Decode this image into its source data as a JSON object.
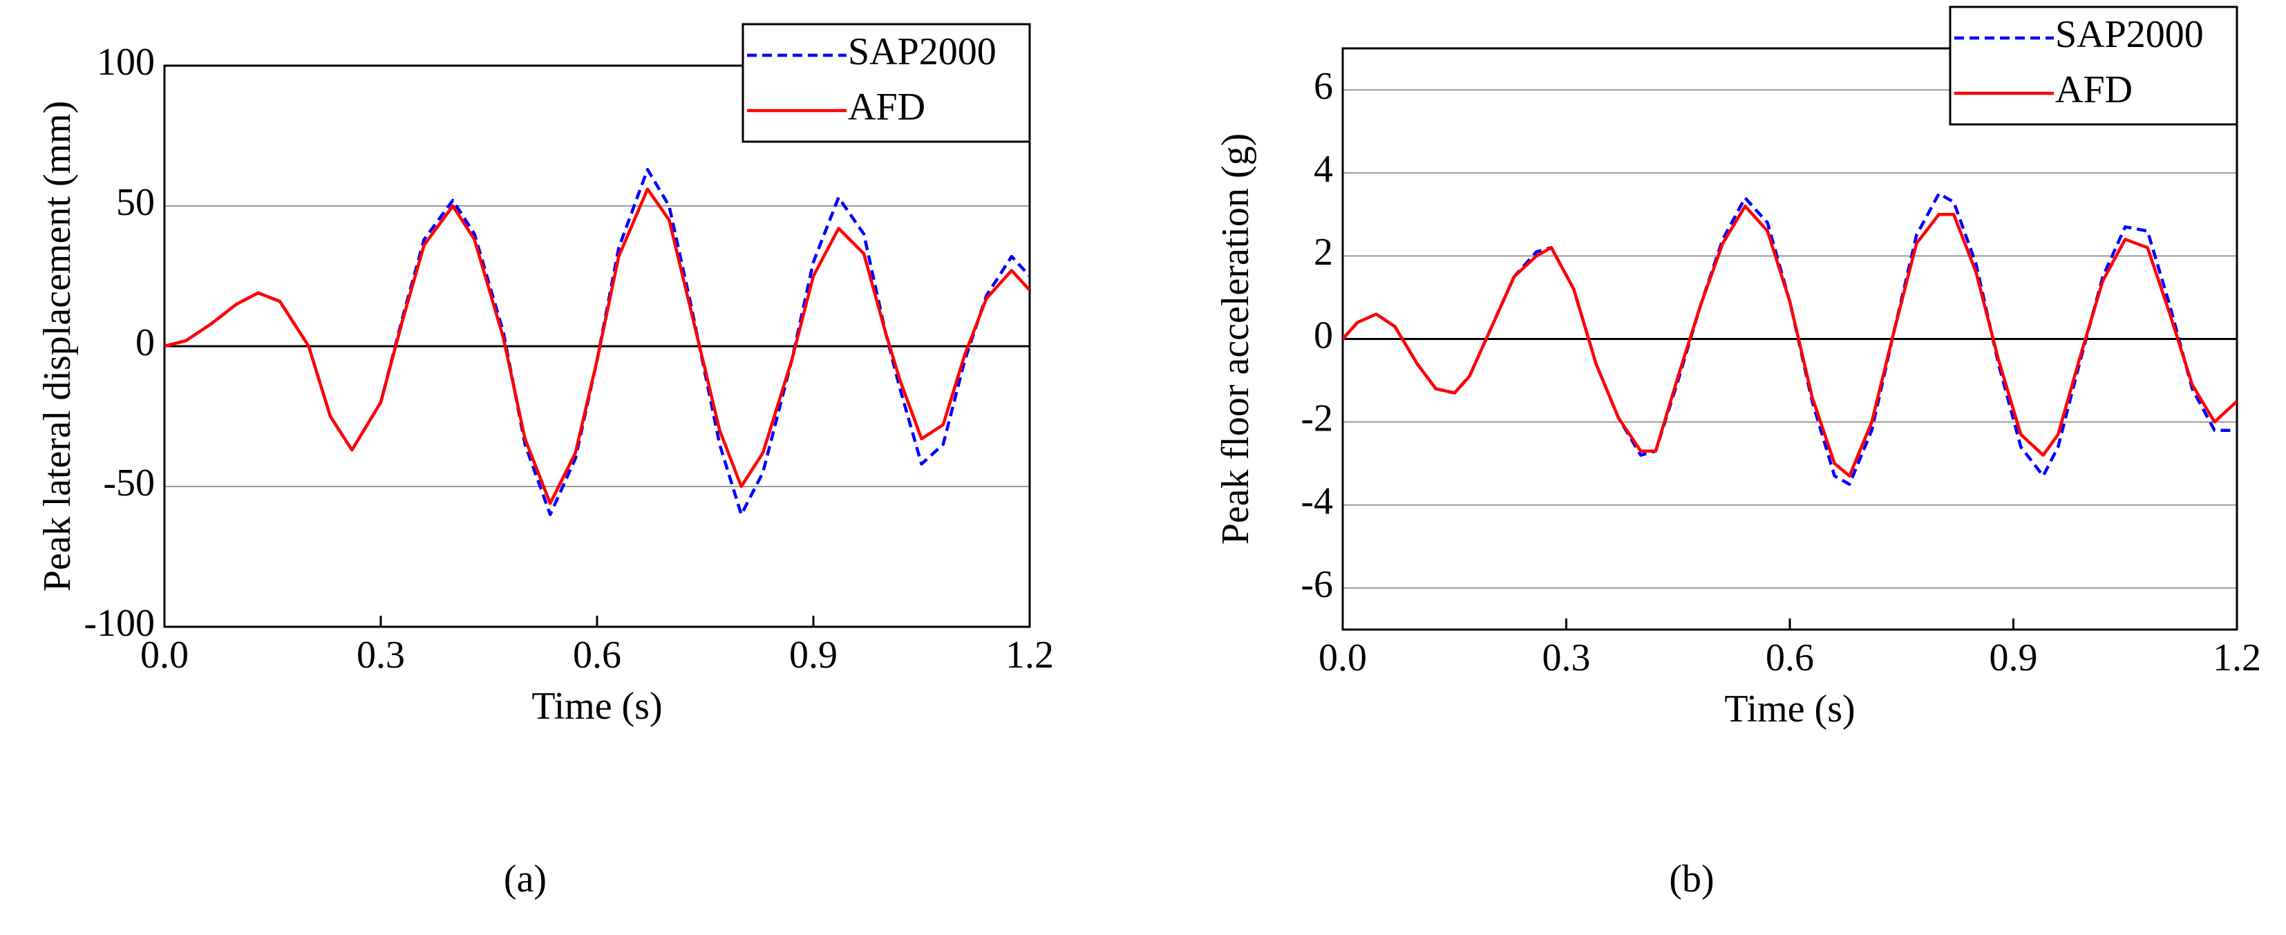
{
  "chart_data": [
    {
      "type": "line",
      "panel_label": "(a)",
      "xlabel": "Time (s)",
      "ylabel": "Peak lateral displacement (mm)",
      "x": [
        0,
        0.03,
        0.065,
        0.1,
        0.13,
        0.16,
        0.2,
        0.23,
        0.26,
        0.3,
        0.33,
        0.36,
        0.4,
        0.43,
        0.47,
        0.5,
        0.535,
        0.57,
        0.6,
        0.63,
        0.67,
        0.7,
        0.73,
        0.77,
        0.8,
        0.83,
        0.87,
        0.9,
        0.935,
        0.97,
        1.0,
        1.02,
        1.05,
        1.08,
        1.11,
        1.14,
        1.175,
        1.2
      ],
      "series": [
        {
          "name": "SAP2000",
          "color": "#0000ff",
          "style": "dashed",
          "values": [
            0,
            2,
            8,
            15,
            19,
            16,
            0,
            -25,
            -37,
            -20,
            10,
            38,
            52,
            40,
            5,
            -35,
            -60,
            -40,
            -5,
            35,
            63,
            50,
            15,
            -35,
            -60,
            -45,
            -5,
            30,
            53,
            40,
            5,
            -15,
            -42,
            -35,
            -5,
            18,
            32,
            25
          ]
        },
        {
          "name": "AFD",
          "color": "#ff0000",
          "style": "solid",
          "values": [
            0,
            2,
            8,
            15,
            19,
            16,
            0,
            -25,
            -37,
            -20,
            9,
            36,
            50,
            38,
            3,
            -33,
            -56,
            -38,
            -5,
            32,
            56,
            45,
            13,
            -30,
            -50,
            -38,
            -5,
            25,
            42,
            33,
            5,
            -12,
            -33,
            -28,
            -3,
            17,
            27,
            20
          ]
        }
      ],
      "xlim": [
        0,
        1.2
      ],
      "xticks": [
        {
          "value": 0,
          "label": "0.0"
        },
        0.3,
        0.6,
        0.9,
        1.2
      ],
      "ylim": [
        -100,
        100
      ],
      "yticks": [
        -100,
        -50,
        0,
        50,
        100
      ],
      "grid": true,
      "legend": "upper right"
    },
    {
      "type": "line",
      "panel_label": "(b)",
      "xlabel": "Time (s)",
      "ylabel": "Peak floor acceleration (g)",
      "x": [
        0,
        0.02,
        0.045,
        0.07,
        0.1,
        0.125,
        0.15,
        0.17,
        0.2,
        0.23,
        0.26,
        0.28,
        0.31,
        0.34,
        0.37,
        0.4,
        0.42,
        0.45,
        0.48,
        0.51,
        0.54,
        0.57,
        0.6,
        0.63,
        0.66,
        0.68,
        0.71,
        0.74,
        0.77,
        0.8,
        0.82,
        0.85,
        0.88,
        0.91,
        0.94,
        0.96,
        0.99,
        1.02,
        1.05,
        1.08,
        1.11,
        1.14,
        1.17,
        1.2
      ],
      "series": [
        {
          "name": "SAP2000",
          "color": "#0000ff",
          "style": "dashed",
          "values": [
            0,
            0.4,
            0.6,
            0.3,
            -0.6,
            -1.2,
            -1.3,
            -0.9,
            0.3,
            1.5,
            2.1,
            2.2,
            1.2,
            -0.6,
            -1.9,
            -2.8,
            -2.7,
            -1.0,
            0.8,
            2.4,
            3.4,
            2.8,
            0.9,
            -1.5,
            -3.3,
            -3.5,
            -2.2,
            0.2,
            2.5,
            3.5,
            3.3,
            1.8,
            -0.6,
            -2.6,
            -3.3,
            -2.6,
            -0.5,
            1.5,
            2.7,
            2.6,
            0.8,
            -1.2,
            -2.2,
            -2.2
          ]
        },
        {
          "name": "AFD",
          "color": "#ff0000",
          "style": "solid",
          "values": [
            0,
            0.4,
            0.6,
            0.3,
            -0.6,
            -1.2,
            -1.3,
            -0.9,
            0.3,
            1.5,
            2.0,
            2.2,
            1.2,
            -0.6,
            -1.9,
            -2.7,
            -2.7,
            -0.9,
            0.8,
            2.3,
            3.2,
            2.6,
            0.9,
            -1.4,
            -3.0,
            -3.3,
            -2.0,
            0.2,
            2.3,
            3.0,
            3.0,
            1.6,
            -0.5,
            -2.3,
            -2.8,
            -2.3,
            -0.4,
            1.4,
            2.4,
            2.2,
            0.6,
            -1.1,
            -2.0,
            -1.5
          ]
        }
      ],
      "xlim": [
        0,
        1.2
      ],
      "xticks": [
        {
          "value": 0,
          "label": "0.0"
        },
        0.3,
        0.6,
        0.9,
        1.2
      ],
      "ylim": [
        -7,
        7
      ],
      "yticks": [
        -6,
        -4,
        -2,
        0,
        2,
        4,
        6
      ],
      "grid": true,
      "legend": "upper right"
    }
  ]
}
